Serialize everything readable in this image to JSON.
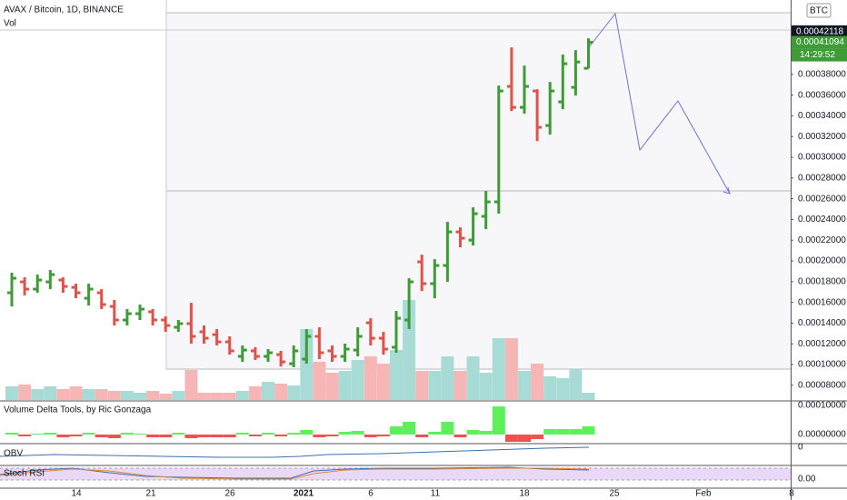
{
  "chart_data": {
    "type": "ohlc",
    "title": "AVAX / Bitcoin, 1D, BINANCE",
    "volume_title": "Vol",
    "delta_title": "Volume Delta Tools, by Ric Gonzaga",
    "obv_title": "OBV",
    "stoch_title": "Stoch RSI",
    "currency": "BTC",
    "up_color": "#3d9c35",
    "down_color": "#e0534a",
    "ylim": [
      6.58e-05,
      0.0004518
    ],
    "yticks": [
      {
        "value": 8e-05,
        "label": "0.00008000"
      },
      {
        "value": 0.0001,
        "label": "0.00010000"
      },
      {
        "value": 0.00012,
        "label": "0.00012000"
      },
      {
        "value": 0.00014,
        "label": "0.00014000"
      },
      {
        "value": 0.00016,
        "label": "0.00016000"
      },
      {
        "value": 0.00018,
        "label": "0.00018000"
      },
      {
        "value": 0.0002,
        "label": "0.00020000"
      },
      {
        "value": 0.00022,
        "label": "0.00022000"
      },
      {
        "value": 0.00024,
        "label": "0.00024000"
      },
      {
        "value": 0.00026,
        "label": "0.00026000"
      },
      {
        "value": 0.00028,
        "label": "0.00028000"
      },
      {
        "value": 0.0003,
        "label": "0.00030000"
      },
      {
        "value": 0.00032,
        "label": "0.00032000"
      },
      {
        "value": 0.00034,
        "label": "0.00034000"
      },
      {
        "value": 0.00036,
        "label": "0.00036000"
      },
      {
        "value": 0.00038,
        "label": "0.00038000"
      }
    ],
    "price_marks": [
      {
        "value": 0.00042118,
        "label": "0.00042118",
        "color": "#131722"
      },
      {
        "value": 0.00041094,
        "label": "0.00041094",
        "color": "#3d9c35"
      }
    ],
    "countdown": "14:29:52",
    "x_labels": [
      "14",
      "21",
      "26",
      "2021",
      "6",
      "11",
      "18",
      "25",
      "Feb",
      "8"
    ],
    "open": [
      0.0001693,
      0.0001798,
      0.0001728,
      0.0001798,
      0.0001816,
      0.0001745,
      0.000164,
      0.0001693,
      0.0001561,
      0.000143,
      0.0001491,
      0.0001509,
      0.000143,
      0.000136,
      0.0001395,
      0.0001316,
      0.0001289,
      0.0001219,
      0.0001079,
      0.0001132,
      0.0001079,
      0.0001096,
      0.0001009,
      0.0001053,
      0.0001272,
      0.0001132,
      0.0001079,
      0.000114,
      0.0001403,
      0.0001254,
      0.0001167,
      0.000143,
      0.0001991,
      0.0001781,
      0.0001956,
      0.000228,
      0.0002201,
      0.000243,
      0.000257,
      0.0003684,
      0.0003482,
      0.000364,
      0.0003307,
      0.0003535,
      0.0003675,
      0.0003859
    ],
    "high": [
      0.0001886,
      0.0001842,
      0.0001868,
      0.0001912,
      0.0001842,
      0.0001781,
      0.0001781,
      0.0001728,
      0.0001623,
      0.0001535,
      0.0001579,
      0.0001535,
      0.0001465,
      0.000143,
      0.0001596,
      0.0001377,
      0.0001342,
      0.0001272,
      0.0001184,
      0.0001167,
      0.0001149,
      0.0001132,
      0.0001184,
      0.0001342,
      0.000136,
      0.0001184,
      0.0001202,
      0.000136,
      0.0001447,
      0.0001316,
      0.0001517,
      0.0001833,
      0.0002061,
      0.0002017,
      0.0002377,
      0.0002324,
      0.0002517,
      0.0002675,
      0.0003692,
      0.0004061,
      0.0003885,
      0.0003657,
      0.0003727,
      0.0003991,
      0.0004034,
      0.0004148
    ],
    "low": [
      0.0001561,
      0.0001667,
      0.0001693,
      0.0001728,
      0.0001693,
      0.000164,
      0.000157,
      0.0001535,
      0.0001377,
      0.0001377,
      0.000143,
      0.0001377,
      0.0001316,
      0.0001316,
      0.0001202,
      0.0001202,
      0.0001184,
      0.0001096,
      0.0001026,
      0.0001044,
      0.0001026,
      9.82e-05,
      9.74e-05,
      0.0001009,
      0.0001053,
      0.0001026,
      0.0001026,
      0.0001079,
      0.0001184,
      0.0001096,
      0.0001114,
      0.0001342,
      0.000171,
      0.000164,
      0.0001798,
      0.0002131,
      0.0002149,
      0.0002307,
      0.0002456,
      0.0003447,
      0.0003421,
      0.0003157,
      0.0003219,
      0.0003464,
      0.0003596,
      0.0003859
    ],
    "close": [
      0.0001833,
      0.0001728,
      0.0001816,
      0.0001868,
      0.0001754,
      0.0001693,
      0.0001728,
      0.0001579,
      0.000143,
      0.0001491,
      0.0001535,
      0.000143,
      0.0001377,
      0.0001395,
      0.0001272,
      0.0001254,
      0.0001219,
      0.0001132,
      0.000114,
      0.0001079,
      0.0001114,
      0.0001026,
      0.0001132,
      0.0001272,
      0.0001114,
      0.0001079,
      0.0001149,
      0.0001272,
      0.0001254,
      0.0001149,
      0.0001447,
      0.0001798,
      0.0001781,
      0.0001956,
      0.000228,
      0.0002219,
      0.0002456,
      0.000257,
      0.000364,
      0.0003482,
      0.0003684,
      0.0003289,
      0.000364,
      0.0003903,
      0.000392,
      0.00041094
    ],
    "volume": [
      15,
      17,
      12,
      15,
      12,
      15,
      12,
      12,
      10,
      10,
      8,
      10,
      7,
      10,
      33,
      8,
      8,
      8,
      10,
      15,
      20,
      18,
      16,
      78,
      42,
      30,
      32,
      44,
      48,
      40,
      55,
      110,
      32,
      32,
      48,
      32,
      48,
      30,
      68,
      68,
      32,
      40,
      26,
      24,
      34,
      8
    ],
    "volume_up_color": "#a8dad6",
    "volume_down_color": "#f6b6b6",
    "delta": [
      6.2e-06,
      -6.2e-06,
      3.1e-06,
      6.2e-06,
      -9.4e-06,
      -6.2e-06,
      6.2e-06,
      -9.4e-06,
      -1.25e-05,
      6.2e-06,
      3.1e-06,
      -9.4e-06,
      -9.4e-06,
      6.2e-06,
      -1.25e-05,
      -9.4e-06,
      -9.4e-06,
      -9.4e-06,
      6.2e-06,
      -6.2e-06,
      6.2e-06,
      -6.2e-06,
      6.2e-06,
      1.56e-05,
      -9.4e-06,
      -6.2e-06,
      9.4e-06,
      1.25e-05,
      -9.4e-06,
      -6.2e-06,
      2.81e-05,
      4.38e-05,
      -9.4e-06,
      9.4e-06,
      4.38e-05,
      -9.4e-06,
      1.56e-05,
      1.25e-05,
      9.69e-05,
      -2.5e-05,
      -2.5e-05,
      -1.56e-05,
      1.88e-05,
      1.88e-05,
      1.88e-05,
      2.81e-05
    ],
    "delta_up_color": "#5ef05a",
    "delta_down_color": "#f05050",
    "delta_lim": [
      -2.8e-05,
      0.000116
    ],
    "delta_ticks": [
      {
        "value": 0.0001,
        "label": "0.00010000"
      },
      {
        "value": 0,
        "label": "0.00000000"
      }
    ],
    "obv_ticks": [
      0
    ],
    "stoch_ticks": [
      {
        "value": 0,
        "label": "0.00"
      }
    ]
  }
}
